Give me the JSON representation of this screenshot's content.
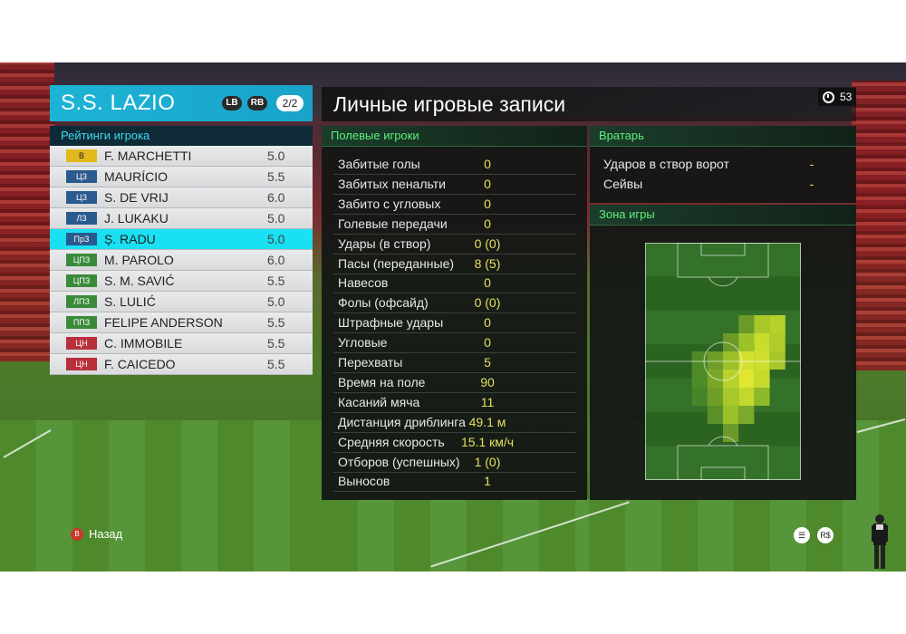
{
  "club": {
    "name": "S.S. LAZIO",
    "lb": "LB",
    "rb": "RB",
    "page": "2/2"
  },
  "ratings": {
    "title": "Рейтинги игрока",
    "players": [
      {
        "pos": "В",
        "name": "F. MARCHETTI",
        "rating": "5.0",
        "pos_color": "#e3b81c",
        "pos_text": "#222"
      },
      {
        "pos": "ЦЗ",
        "name": "MAURÍCIO",
        "rating": "5.5",
        "pos_color": "#2a5a8e",
        "pos_text": "#fff"
      },
      {
        "pos": "ЦЗ",
        "name": "S. DE VRIJ",
        "rating": "6.0",
        "pos_color": "#2a5a8e",
        "pos_text": "#fff"
      },
      {
        "pos": "ЛЗ",
        "name": "J. LUKAKU",
        "rating": "5.0",
        "pos_color": "#2a5a8e",
        "pos_text": "#fff"
      },
      {
        "pos": "ПрЗ",
        "name": "Ș. RADU",
        "rating": "5.0",
        "pos_color": "#2a5a8e",
        "pos_text": "#fff"
      },
      {
        "pos": "ЦПЗ",
        "name": "M. PAROLO",
        "rating": "6.0",
        "pos_color": "#3a8a3a",
        "pos_text": "#fff"
      },
      {
        "pos": "ЦПЗ",
        "name": "S. M. SAVIĆ",
        "rating": "5.5",
        "pos_color": "#3a8a3a",
        "pos_text": "#fff"
      },
      {
        "pos": "ЛПЗ",
        "name": "S. LULIĆ",
        "rating": "5.0",
        "pos_color": "#3a8a3a",
        "pos_text": "#fff"
      },
      {
        "pos": "ППЗ",
        "name": "FELIPE ANDERSON",
        "rating": "5.5",
        "pos_color": "#3a8a3a",
        "pos_text": "#fff"
      },
      {
        "pos": "ЦН",
        "name": "C. IMMOBILE",
        "rating": "5.5",
        "pos_color": "#b8313a",
        "pos_text": "#fff"
      },
      {
        "pos": "ЦН",
        "name": "F. CAICEDO",
        "rating": "5.5",
        "pos_color": "#b8313a",
        "pos_text": "#fff"
      }
    ]
  },
  "main": {
    "title": "Личные игровые записи",
    "timer": "53"
  },
  "field_players": {
    "title": "Полевые игроки",
    "rows": [
      {
        "label": "Забитые голы",
        "value": "0"
      },
      {
        "label": "Забитых пенальти",
        "value": "0"
      },
      {
        "label": "Забито с угловых",
        "value": "0"
      },
      {
        "label": "Голевые передачи",
        "value": "0"
      },
      {
        "label": "Удары (в створ)",
        "value": "0 (0)"
      },
      {
        "label": "Пасы (переданные)",
        "value": "8 (5)"
      },
      {
        "label": "Навесов",
        "value": "0"
      },
      {
        "label": "Фолы (офсайд)",
        "value": "0 (0)"
      },
      {
        "label": "Штрафные удары",
        "value": "0"
      },
      {
        "label": "Угловые",
        "value": "0"
      },
      {
        "label": "Перехваты",
        "value": "5"
      },
      {
        "label": "Время на поле",
        "value": "90"
      },
      {
        "label": "Касаний мяча",
        "value": "11"
      },
      {
        "label": "Дистанция дриблинга",
        "value": "49.1 м"
      },
      {
        "label": "Средняя скорость",
        "value": "15.1 км/ч"
      },
      {
        "label": "Отборов (успешных)",
        "value": "1 (0)"
      },
      {
        "label": "Выносов",
        "value": "1"
      }
    ]
  },
  "goalkeeper": {
    "title": "Вратарь",
    "rows": [
      {
        "label": "Ударов в створ ворот",
        "value": "-"
      },
      {
        "label": "Сейвы",
        "value": "-"
      }
    ]
  },
  "zone": {
    "title": "Зона игры"
  },
  "footer": {
    "back_button": "B",
    "back_label": "Назад"
  },
  "colors": {
    "accent_cyan": "#1cb4d6",
    "selected_row": "#19e0f2",
    "section_green": "#5ff07d",
    "value_yellow": "#e6e060"
  }
}
